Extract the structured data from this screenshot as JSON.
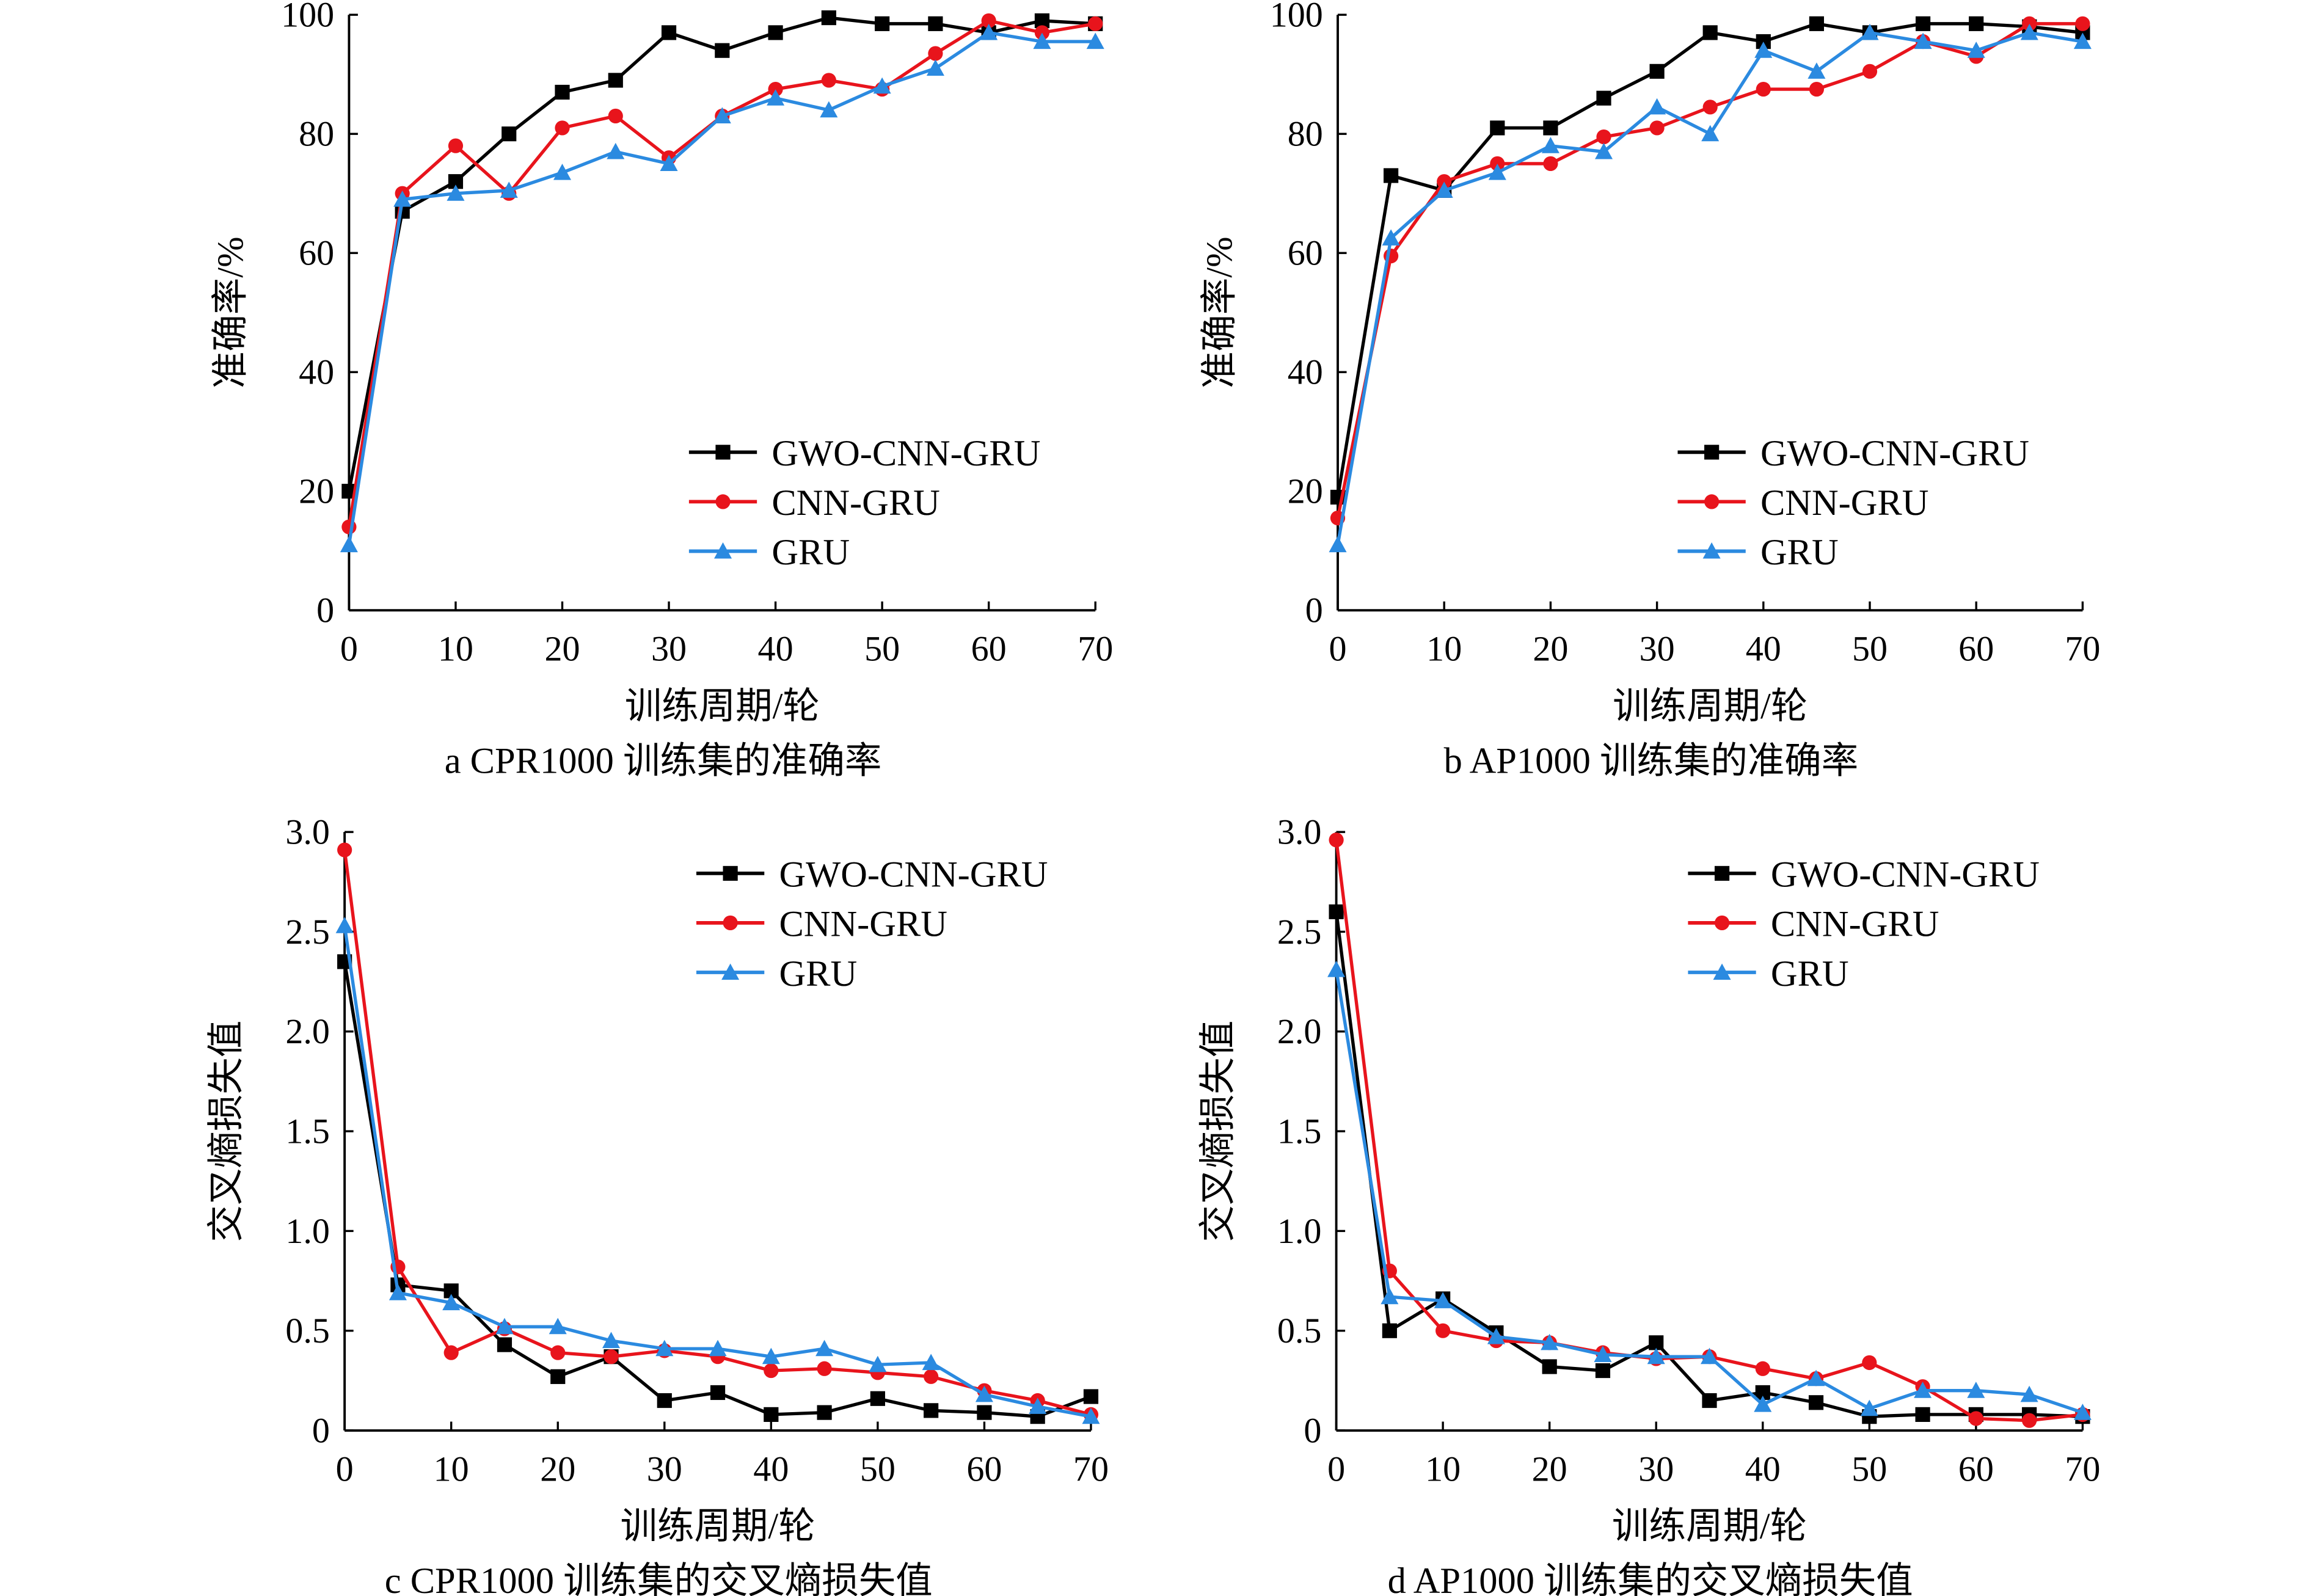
{
  "colors": {
    "GWO-CNN-GRU": "#000000",
    "CNN-GRU": "#e8141c",
    "GRU": "#2b8ae0"
  },
  "chart_data": [
    {
      "type": "line",
      "caption": "a  CPR1000 训练集的准确率",
      "xlabel": "训练周期/轮",
      "ylabel": "准确率/%",
      "xlim": [
        0,
        70
      ],
      "ylim": [
        0,
        100
      ],
      "xticks": [
        0,
        10,
        20,
        30,
        40,
        50,
        60,
        70
      ],
      "yticks": [
        0,
        20,
        40,
        60,
        80,
        100
      ],
      "legend": "bottom-right",
      "x": [
        0,
        5,
        10,
        15,
        20,
        25,
        30,
        35,
        40,
        45,
        50,
        55,
        60,
        65,
        70
      ],
      "series": [
        {
          "name": "GWO-CNN-GRU",
          "marker": "square",
          "values": [
            20,
            67,
            72,
            80,
            87,
            89,
            97,
            94,
            97,
            99.5,
            98.5,
            98.5,
            97,
            99,
            98.5
          ]
        },
        {
          "name": "CNN-GRU",
          "marker": "circle",
          "values": [
            14,
            70,
            78,
            70,
            81,
            83,
            76,
            83,
            87.5,
            89,
            87.5,
            93.5,
            99,
            97,
            98.5
          ]
        },
        {
          "name": "GRU",
          "marker": "triangle",
          "values": [
            11,
            69,
            70,
            70.5,
            73.5,
            77,
            75,
            83,
            86,
            84,
            88,
            91,
            97,
            95.5,
            95.5
          ]
        }
      ]
    },
    {
      "type": "line",
      "caption": "b  AP1000 训练集的准确率",
      "xlabel": "训练周期/轮",
      "ylabel": "准确率/%",
      "xlim": [
        0,
        70
      ],
      "ylim": [
        0,
        100
      ],
      "xticks": [
        0,
        10,
        20,
        30,
        40,
        50,
        60,
        70
      ],
      "yticks": [
        0,
        20,
        40,
        60,
        80,
        100
      ],
      "legend": "bottom-right",
      "x": [
        0,
        5,
        10,
        15,
        20,
        25,
        30,
        35,
        40,
        45,
        50,
        55,
        60,
        65,
        70
      ],
      "series": [
        {
          "name": "GWO-CNN-GRU",
          "marker": "square",
          "values": [
            19,
            73,
            70.5,
            81,
            81,
            86,
            90.5,
            97,
            95.5,
            98.5,
            97,
            98.5,
            98.5,
            98,
            97
          ]
        },
        {
          "name": "CNN-GRU",
          "marker": "circle",
          "values": [
            15.5,
            59.5,
            72,
            75,
            75,
            79.5,
            81,
            84.5,
            87.5,
            87.5,
            90.5,
            95.5,
            93,
            98.5,
            98.5
          ]
        },
        {
          "name": "GRU",
          "marker": "triangle",
          "values": [
            11,
            62.5,
            70.5,
            73.5,
            78,
            77,
            84.5,
            80,
            94,
            90.5,
            97,
            95.5,
            94,
            97,
            95.5
          ]
        }
      ]
    },
    {
      "type": "line",
      "caption": "c  CPR1000 训练集的交叉熵损失值",
      "xlabel": "训练周期/轮",
      "ylabel": "交叉熵损失值",
      "xlim": [
        0,
        70
      ],
      "ylim": [
        0,
        3.0
      ],
      "xticks": [
        0,
        10,
        20,
        30,
        40,
        50,
        60,
        70
      ],
      "yticks": [
        "0",
        "0.5",
        "1.0",
        "1.5",
        "2.0",
        "2.5",
        "3.0"
      ],
      "legend": "top-right",
      "x": [
        0,
        5,
        10,
        15,
        20,
        25,
        30,
        35,
        40,
        45,
        50,
        55,
        60,
        65,
        70
      ],
      "series": [
        {
          "name": "GWO-CNN-GRU",
          "marker": "square",
          "values": [
            2.35,
            0.73,
            0.7,
            0.43,
            0.27,
            0.37,
            0.15,
            0.19,
            0.08,
            0.09,
            0.16,
            0.1,
            0.09,
            0.07,
            0.17
          ]
        },
        {
          "name": "CNN-GRU",
          "marker": "circle",
          "values": [
            2.91,
            0.82,
            0.39,
            0.51,
            0.39,
            0.37,
            0.4,
            0.37,
            0.3,
            0.31,
            0.29,
            0.27,
            0.2,
            0.15,
            0.08
          ]
        },
        {
          "name": "GRU",
          "marker": "triangle",
          "values": [
            2.53,
            0.69,
            0.64,
            0.52,
            0.52,
            0.45,
            0.41,
            0.41,
            0.37,
            0.41,
            0.33,
            0.34,
            0.18,
            0.12,
            0.07
          ]
        }
      ]
    },
    {
      "type": "line",
      "caption": "d  AP1000 训练集的交叉熵损失值",
      "xlabel": "训练周期/轮",
      "ylabel": "交叉熵损失值",
      "xlim": [
        0,
        70
      ],
      "ylim": [
        0,
        3.0
      ],
      "xticks": [
        0,
        10,
        20,
        30,
        40,
        50,
        60,
        70
      ],
      "yticks": [
        "0",
        "0.5",
        "1.0",
        "1.5",
        "2.0",
        "2.5",
        "3.0"
      ],
      "legend": "top-right",
      "x": [
        0,
        5,
        10,
        15,
        20,
        25,
        30,
        35,
        40,
        45,
        50,
        55,
        60,
        65,
        70
      ],
      "series": [
        {
          "name": "GWO-CNN-GRU",
          "marker": "square",
          "values": [
            2.6,
            0.5,
            0.66,
            0.49,
            0.32,
            0.3,
            0.44,
            0.15,
            0.19,
            0.14,
            0.07,
            0.08,
            0.08,
            0.08,
            0.07
          ]
        },
        {
          "name": "CNN-GRU",
          "marker": "circle",
          "values": [
            2.96,
            0.8,
            0.5,
            0.45,
            0.44,
            0.39,
            0.36,
            0.37,
            0.31,
            0.26,
            0.34,
            0.22,
            0.06,
            0.05,
            0.08
          ]
        },
        {
          "name": "GRU",
          "marker": "triangle",
          "values": [
            2.31,
            0.67,
            0.65,
            0.47,
            0.44,
            0.38,
            0.37,
            0.37,
            0.13,
            0.26,
            0.11,
            0.2,
            0.2,
            0.18,
            0.09
          ]
        }
      ]
    }
  ]
}
